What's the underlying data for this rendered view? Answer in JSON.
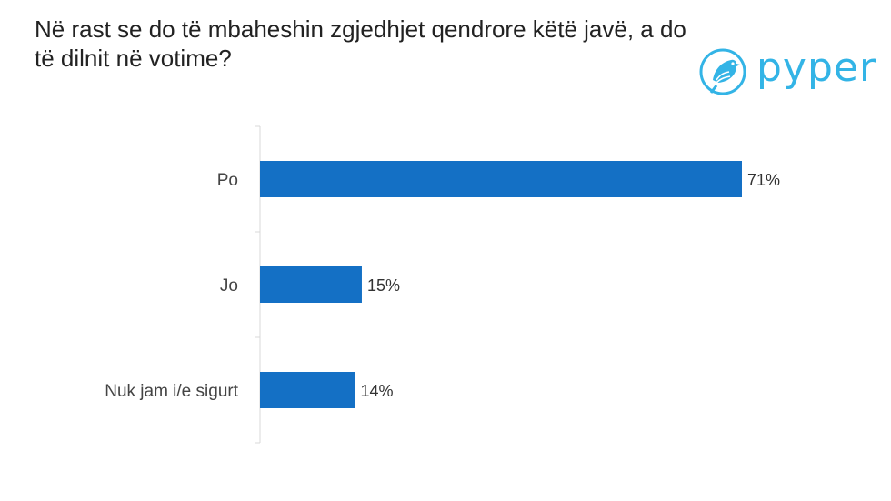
{
  "title": "Në rast se do të mbaheshin zgjedhjet qendrore këtë javë, a do të dilnit në votime?",
  "logo": {
    "text": "pyper",
    "icon": "bird-logo-icon",
    "color": "#33b4e6"
  },
  "chart_data": {
    "type": "bar",
    "orientation": "horizontal",
    "categories": [
      "Po",
      "Jo",
      "Nuk jam i/e sigurt"
    ],
    "values": [
      71,
      15,
      14
    ],
    "value_labels": [
      "71%",
      "15%",
      "14%"
    ],
    "unit": "%",
    "xlim": [
      0,
      71
    ],
    "bar_color": "#1470c5",
    "grid": false,
    "legend": "none"
  }
}
